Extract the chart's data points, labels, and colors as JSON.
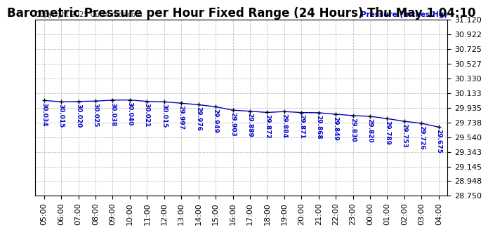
{
  "title": "Barometric Pressure per Hour Fixed Range (24 Hours) Thu May 1 04:10",
  "copyright": "Copyright 2025 Curtronics.com",
  "ylabel": "Pressure (Inches/Hg)",
  "background_color": "#ffffff",
  "plot_bg_color": "#ffffff",
  "grid_color": "#c0c0c0",
  "line_color": "#0000cc",
  "marker_color": "#000000",
  "text_color_blue": "#0000cc",
  "ylim_min": 28.75,
  "ylim_max": 31.12,
  "yticks": [
    28.75,
    28.948,
    29.145,
    29.343,
    29.54,
    29.738,
    29.935,
    30.133,
    30.33,
    30.527,
    30.725,
    30.922,
    31.12
  ],
  "hours": [
    "05:00",
    "06:00",
    "07:00",
    "08:00",
    "09:00",
    "10:00",
    "11:00",
    "12:00",
    "13:00",
    "14:00",
    "15:00",
    "16:00",
    "17:00",
    "18:00",
    "19:00",
    "20:00",
    "21:00",
    "22:00",
    "23:00",
    "00:00",
    "01:00",
    "02:00",
    "03:00",
    "04:00"
  ],
  "values": [
    30.034,
    30.015,
    30.02,
    30.025,
    30.038,
    30.04,
    30.021,
    30.015,
    29.997,
    29.976,
    29.949,
    29.903,
    29.889,
    29.872,
    29.884,
    29.871,
    29.868,
    29.849,
    29.83,
    29.82,
    29.789,
    29.753,
    29.726,
    29.675
  ],
  "title_fontsize": 12,
  "axis_fontsize": 8,
  "annotation_fontsize": 6.5
}
